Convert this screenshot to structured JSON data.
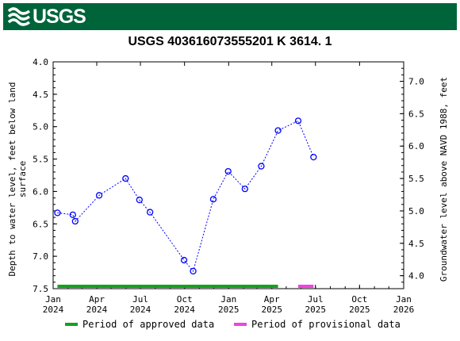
{
  "header": {
    "logo_text": "USGS",
    "logo_icon": "usgs-wave-icon",
    "brand_color": "#00643a"
  },
  "chart_data": {
    "type": "scatter",
    "title": "USGS 403616073555201 K  3614. 1",
    "ylabel_left_line1": "Depth to water level, feet below land",
    "ylabel_left_line2": "surface",
    "ylabel_right": "Groundwater level above NAVD 1988, feet",
    "ylim_left": [
      7.5,
      4.0
    ],
    "ylim_right": [
      3.8,
      7.3
    ],
    "y_ticks_left": [
      "4.0",
      "4.5",
      "5.0",
      "5.5",
      "6.0",
      "6.5",
      "7.0",
      "7.5"
    ],
    "y_ticks_right": [
      "4.0",
      "4.5",
      "5.0",
      "5.5",
      "6.0",
      "6.5",
      "7.0"
    ],
    "x_ticks": [
      {
        "line1": "Jan",
        "line2": "2024",
        "date": "2024-01-01"
      },
      {
        "line1": "Apr",
        "line2": "2024",
        "date": "2024-04-01"
      },
      {
        "line1": "Jul",
        "line2": "2024",
        "date": "2024-07-01"
      },
      {
        "line1": "Oct",
        "line2": "2024",
        "date": "2024-10-01"
      },
      {
        "line1": "Jan",
        "line2": "2025",
        "date": "2025-01-01"
      },
      {
        "line1": "Apr",
        "line2": "2025",
        "date": "2025-04-01"
      },
      {
        "line1": "Jul",
        "line2": "2025",
        "date": "2025-07-01"
      },
      {
        "line1": "Oct",
        "line2": "2025",
        "date": "2025-10-01"
      },
      {
        "line1": "Jan",
        "line2": "2026",
        "date": "2026-01-01"
      }
    ],
    "points": [
      {
        "date": "2024-01-10",
        "value": 6.33
      },
      {
        "date": "2024-02-11",
        "value": 6.36
      },
      {
        "date": "2024-02-16",
        "value": 6.46
      },
      {
        "date": "2024-04-06",
        "value": 6.06
      },
      {
        "date": "2024-05-31",
        "value": 5.8
      },
      {
        "date": "2024-06-29",
        "value": 6.13
      },
      {
        "date": "2024-07-21",
        "value": 6.32
      },
      {
        "date": "2024-09-30",
        "value": 7.06
      },
      {
        "date": "2024-10-19",
        "value": 7.23
      },
      {
        "date": "2024-11-30",
        "value": 6.12
      },
      {
        "date": "2024-12-31",
        "value": 5.69
      },
      {
        "date": "2025-02-04",
        "value": 5.96
      },
      {
        "date": "2025-03-10",
        "value": 5.61
      },
      {
        "date": "2025-04-14",
        "value": 5.06
      },
      {
        "date": "2025-05-26",
        "value": 4.91
      },
      {
        "date": "2025-06-27",
        "value": 5.47
      }
    ],
    "approved_period": [
      "2024-01-10",
      "2025-04-14"
    ],
    "provisional_period": [
      "2025-05-26",
      "2025-06-27"
    ],
    "colors": {
      "marker": "#0000ff",
      "line": "#0000ff",
      "approved": "#16a11f",
      "provisional": "#ee44dd"
    },
    "legend": {
      "approved_label": "Period of approved data",
      "provisional_label": "Period of provisional data",
      "placement": "bottom"
    }
  }
}
